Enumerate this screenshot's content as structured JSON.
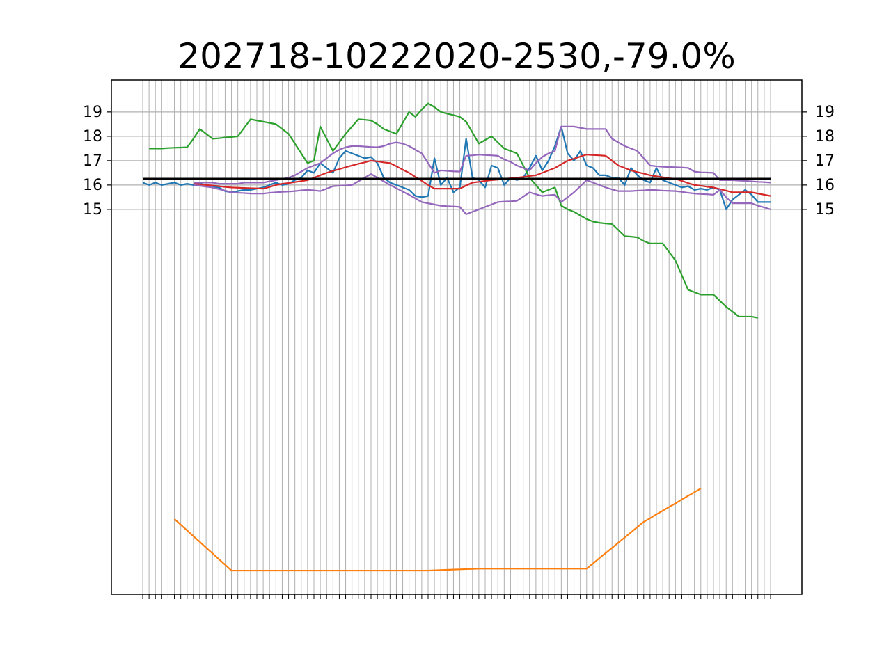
{
  "chart_data": {
    "type": "line",
    "title": "202718-10222020-2530,-79.0%",
    "categories": [
      null,
      null,
      null,
      null,
      null,
      null,
      null,
      null,
      null,
      null,
      null,
      null,
      null,
      null,
      null,
      null,
      null,
      null,
      null,
      null,
      null,
      null,
      null,
      null,
      null,
      null,
      null,
      null,
      null,
      null,
      null,
      null,
      null,
      null,
      null,
      null,
      null,
      null,
      null,
      null,
      null,
      null,
      null,
      null,
      null,
      null,
      null,
      null,
      null,
      null,
      null,
      null,
      null,
      null,
      null,
      null,
      null,
      null,
      null,
      null,
      null,
      null,
      null,
      null,
      null,
      null,
      null,
      null,
      null,
      null,
      null,
      null,
      null,
      null,
      null,
      null,
      null,
      null,
      null,
      null,
      null,
      null,
      null,
      null,
      null,
      null,
      null,
      null,
      null,
      null,
      null,
      null,
      null,
      null,
      null,
      null,
      null,
      null,
      null,
      null
    ],
    "ylim": [
      -0.8,
      20.31
    ],
    "yticks": [
      15,
      16,
      17,
      18,
      19
    ],
    "y2lim": [
      -0.8,
      20.31
    ],
    "y2ticks": [
      15,
      16,
      17,
      18,
      19
    ],
    "grid": true,
    "hline": {
      "value": 16.26,
      "color": "#000000"
    },
    "series": [
      {
        "color": "#1f77b4",
        "values": [
          16.1,
          16.0,
          16.1,
          16.0,
          16.05,
          16.1,
          16.0,
          16.05,
          16.0,
          16.05,
          16.0,
          15.95,
          15.9,
          15.75,
          15.7,
          15.75,
          15.8,
          15.8,
          15.85,
          15.9,
          16.0,
          16.1,
          16.0,
          16.05,
          16.2,
          16.3,
          16.6,
          16.5,
          16.9,
          16.7,
          16.5,
          17.1,
          17.4,
          17.3,
          17.2,
          17.1,
          17.15,
          16.9,
          16.3,
          16.1,
          16.0,
          15.9,
          15.8,
          15.55,
          15.5,
          15.55,
          17.1,
          16.0,
          16.3,
          15.7,
          15.9,
          17.9,
          16.3,
          16.2,
          15.9,
          16.8,
          16.7,
          16.0,
          16.3,
          16.2,
          16.3,
          16.7,
          17.2,
          16.6,
          17.0,
          17.6,
          18.4,
          17.3,
          17.0,
          17.4,
          16.8,
          16.7,
          16.4,
          16.4,
          16.3,
          16.3,
          16.0,
          16.7,
          16.4,
          16.2,
          16.1,
          16.7,
          16.2,
          16.1,
          16.0,
          15.9,
          15.95,
          15.8,
          15.85,
          15.8,
          15.9,
          15.8,
          15.0,
          15.4,
          15.6,
          15.8,
          15.6,
          15.3,
          15.3,
          15.3
        ]
      },
      {
        "color": "#ff7f0e",
        "values": [
          null,
          null,
          null,
          null,
          null,
          2.29,
          2.05,
          1.82,
          1.58,
          1.35,
          1.11,
          0.88,
          0.64,
          0.41,
          0.17,
          0.17,
          0.17,
          0.17,
          0.17,
          0.17,
          0.17,
          0.17,
          0.17,
          0.17,
          0.17,
          0.17,
          0.17,
          0.17,
          0.17,
          0.17,
          0.17,
          0.17,
          0.17,
          0.17,
          0.17,
          0.17,
          0.17,
          0.17,
          0.17,
          0.17,
          0.17,
          0.17,
          0.17,
          0.17,
          0.17,
          0.17,
          0.18,
          0.19,
          0.2,
          0.21,
          0.22,
          0.23,
          0.24,
          0.25,
          0.25,
          0.25,
          0.25,
          0.25,
          0.25,
          0.25,
          0.25,
          0.25,
          0.25,
          0.25,
          0.25,
          0.25,
          0.25,
          0.25,
          0.25,
          0.25,
          0.25,
          0.46,
          0.68,
          0.89,
          1.1,
          1.32,
          1.53,
          1.74,
          1.96,
          2.17,
          2.32,
          2.48,
          2.63,
          2.78,
          2.93,
          3.09,
          3.24,
          3.39,
          3.54,
          null,
          null,
          null,
          null,
          null,
          null,
          null,
          null,
          null,
          null,
          null
        ]
      },
      {
        "color": "#2ca02c",
        "values": [
          null,
          17.5,
          17.5,
          17.5,
          17.52,
          17.53,
          17.54,
          17.55,
          17.9,
          18.3,
          18.1,
          17.9,
          17.92,
          17.95,
          17.97,
          18.0,
          18.35,
          18.7,
          18.65,
          18.6,
          18.55,
          18.5,
          18.3,
          18.1,
          17.7,
          17.3,
          16.9,
          17.0,
          18.4,
          17.9,
          17.4,
          17.75,
          18.1,
          18.4,
          18.7,
          18.68,
          18.65,
          18.5,
          18.3,
          18.2,
          18.1,
          18.55,
          19.0,
          18.8,
          19.1,
          19.35,
          19.2,
          19.0,
          18.93,
          18.87,
          18.8,
          18.6,
          18.15,
          17.7,
          17.85,
          18.0,
          17.75,
          17.5,
          17.4,
          17.3,
          16.8,
          16.3,
          16.0,
          15.7,
          15.8,
          15.9,
          15.15,
          15.0,
          14.9,
          14.75,
          14.6,
          14.5,
          14.45,
          14.42,
          14.4,
          14.15,
          13.9,
          13.88,
          13.85,
          13.7,
          13.6,
          13.6,
          13.6,
          13.25,
          12.9,
          12.3,
          11.7,
          11.6,
          11.5,
          11.5,
          11.5,
          11.25,
          11.0,
          10.8,
          10.6,
          10.6,
          10.6,
          10.55,
          null,
          null
        ]
      },
      {
        "color": "#d62728",
        "values": [
          null,
          null,
          null,
          null,
          null,
          null,
          null,
          null,
          16.05,
          16.03,
          16.0,
          15.98,
          15.95,
          15.92,
          15.9,
          15.89,
          15.88,
          15.87,
          15.86,
          15.85,
          15.92,
          16.0,
          16.05,
          16.08,
          16.12,
          16.16,
          16.2,
          16.3,
          16.4,
          16.5,
          16.58,
          16.65,
          16.73,
          16.8,
          16.87,
          16.93,
          17.0,
          16.97,
          16.93,
          16.9,
          16.77,
          16.63,
          16.5,
          16.33,
          16.17,
          16.0,
          15.85,
          15.85,
          15.85,
          15.85,
          15.85,
          15.98,
          16.1,
          16.13,
          16.17,
          16.2,
          16.22,
          16.25,
          16.28,
          16.3,
          16.33,
          16.37,
          16.4,
          16.5,
          16.6,
          16.7,
          16.85,
          17.0,
          17.08,
          17.17,
          17.25,
          17.23,
          17.22,
          17.2,
          17.0,
          16.8,
          16.7,
          16.6,
          16.53,
          16.47,
          16.4,
          16.36,
          16.32,
          16.28,
          16.25,
          16.17,
          16.08,
          16.0,
          15.97,
          15.93,
          15.9,
          15.83,
          15.77,
          15.7,
          15.7,
          15.7,
          15.7,
          15.65,
          15.6,
          15.55
        ]
      },
      {
        "color": "#9467bd",
        "values": [
          null,
          null,
          null,
          null,
          null,
          null,
          null,
          null,
          16.1,
          16.1,
          16.1,
          16.1,
          16.05,
          16.05,
          16.05,
          16.05,
          16.1,
          16.1,
          16.1,
          16.1,
          16.15,
          16.2,
          16.25,
          16.3,
          16.4,
          16.55,
          16.7,
          16.8,
          16.9,
          17.1,
          17.3,
          17.45,
          17.55,
          17.6,
          17.6,
          17.58,
          17.56,
          17.55,
          17.6,
          17.7,
          17.75,
          17.7,
          17.6,
          17.45,
          17.3,
          16.9,
          16.5,
          16.6,
          16.58,
          16.56,
          16.55,
          17.2,
          17.22,
          17.25,
          17.23,
          17.22,
          17.2,
          17.05,
          16.95,
          16.8,
          16.7,
          16.6,
          16.9,
          17.15,
          17.3,
          17.4,
          18.4,
          18.4,
          18.4,
          18.35,
          18.3,
          18.3,
          18.3,
          18.3,
          17.9,
          17.75,
          17.6,
          17.5,
          17.4,
          17.1,
          16.8,
          16.77,
          16.75,
          16.74,
          16.73,
          16.72,
          16.7,
          16.55,
          16.52,
          16.51,
          16.5,
          16.2,
          16.2,
          16.2,
          16.18,
          16.17,
          16.15,
          16.13,
          16.12,
          16.1
        ]
      },
      {
        "color": "#9467bd",
        "values": [
          null,
          null,
          null,
          null,
          null,
          null,
          null,
          null,
          16.0,
          15.97,
          15.93,
          15.9,
          15.83,
          15.77,
          15.7,
          15.68,
          15.67,
          15.65,
          15.65,
          15.65,
          15.68,
          15.7,
          15.72,
          15.73,
          15.75,
          15.78,
          15.8,
          15.78,
          15.75,
          15.85,
          15.95,
          15.97,
          15.98,
          16.0,
          16.15,
          16.3,
          16.45,
          16.3,
          16.15,
          16.0,
          15.87,
          15.73,
          15.6,
          15.45,
          15.3,
          15.25,
          15.2,
          15.15,
          15.13,
          15.12,
          15.1,
          14.8,
          14.9,
          15.0,
          15.1,
          15.2,
          15.3,
          15.32,
          15.33,
          15.35,
          15.52,
          15.7,
          15.62,
          15.55,
          15.58,
          15.6,
          15.3,
          15.5,
          15.7,
          15.95,
          16.2,
          16.1,
          16.0,
          15.9,
          15.82,
          15.75,
          15.75,
          15.75,
          15.77,
          15.78,
          15.8,
          15.79,
          15.77,
          15.76,
          15.75,
          15.72,
          15.68,
          15.65,
          15.63,
          15.62,
          15.6,
          15.8,
          15.5,
          15.25,
          15.25,
          15.25,
          15.25,
          15.15,
          15.08,
          15.0
        ]
      }
    ]
  }
}
